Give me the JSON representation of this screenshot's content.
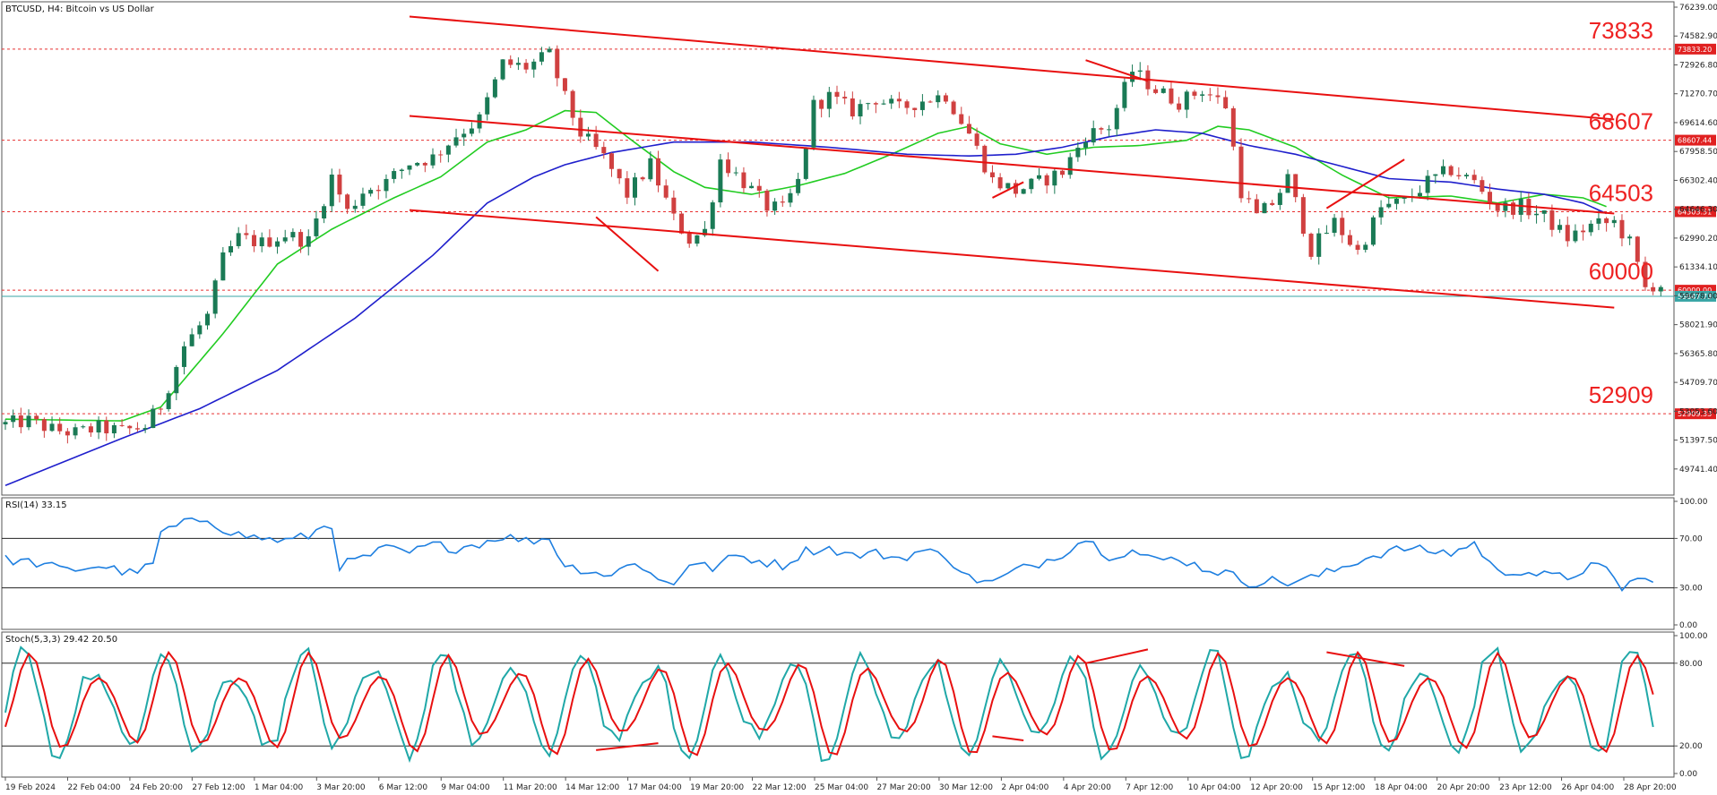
{
  "chart_data": {
    "type": "candlestick",
    "title": "BTCUSD, H4:  Bitcoin vs US Dollar",
    "price_axis": {
      "ticks": [
        "76239.00",
        "74582.90",
        "72926.80",
        "71270.70",
        "69614.60",
        "67958.50",
        "66302.40",
        "64646.30",
        "62990.20",
        "61334.10",
        "59678.00",
        "58021.90",
        "56365.80",
        "54709.70",
        "53053.60",
        "51397.50",
        "49741.40"
      ],
      "ylim": [
        48500,
        76239
      ]
    },
    "time_axis": {
      "ticks": [
        "19 Feb 2024",
        "22 Feb 04:00",
        "24 Feb 20:00",
        "27 Feb 12:00",
        "1 Mar 04:00",
        "3 Mar 20:00",
        "6 Mar 12:00",
        "9 Mar 04:00",
        "11 Mar 20:00",
        "14 Mar 12:00",
        "17 Mar 04:00",
        "19 Mar 20:00",
        "22 Mar 12:00",
        "25 Mar 04:00",
        "27 Mar 20:00",
        "30 Mar 12:00",
        "2 Apr 04:00",
        "4 Apr 20:00",
        "7 Apr 12:00",
        "10 Apr 04:00",
        "12 Apr 20:00",
        "15 Apr 12:00",
        "18 Apr 04:00",
        "20 Apr 20:00",
        "23 Apr 12:00",
        "26 Apr 04:00",
        "28 Apr 20:00"
      ]
    },
    "price_path": [
      [
        0,
        52300
      ],
      [
        3,
        52500
      ],
      [
        6,
        52000
      ],
      [
        9,
        51800
      ],
      [
        12,
        52100
      ],
      [
        15,
        51900
      ],
      [
        18,
        52200
      ],
      [
        20,
        53400
      ],
      [
        23,
        56800
      ],
      [
        26,
        58500
      ],
      [
        28,
        61800
      ],
      [
        30,
        63000
      ],
      [
        33,
        62700
      ],
      [
        36,
        63200
      ],
      [
        39,
        62800
      ],
      [
        42,
        66500
      ],
      [
        44,
        64500
      ],
      [
        46,
        65700
      ],
      [
        49,
        66200
      ],
      [
        52,
        67300
      ],
      [
        55,
        67600
      ],
      [
        58,
        68900
      ],
      [
        61,
        69800
      ],
      [
        64,
        73000
      ],
      [
        67,
        72800
      ],
      [
        70,
        73500
      ],
      [
        72,
        71000
      ],
      [
        74,
        69000
      ],
      [
        77,
        67600
      ],
      [
        80,
        65500
      ],
      [
        83,
        67200
      ],
      [
        86,
        64100
      ],
      [
        88,
        62900
      ],
      [
        90,
        63400
      ],
      [
        92,
        67500
      ],
      [
        95,
        66200
      ],
      [
        98,
        64800
      ],
      [
        100,
        64600
      ],
      [
        102,
        66200
      ],
      [
        104,
        70600
      ],
      [
        106,
        71100
      ],
      [
        109,
        70300
      ],
      [
        112,
        71000
      ],
      [
        115,
        70400
      ],
      [
        118,
        70900
      ],
      [
        121,
        71200
      ],
      [
        124,
        69000
      ],
      [
        127,
        66300
      ],
      [
        130,
        65700
      ],
      [
        133,
        66200
      ],
      [
        136,
        66800
      ],
      [
        139,
        68900
      ],
      [
        142,
        69400
      ],
      [
        145,
        72600
      ],
      [
        148,
        71500
      ],
      [
        151,
        70800
      ],
      [
        154,
        71500
      ],
      [
        157,
        70600
      ],
      [
        159,
        65700
      ],
      [
        161,
        64200
      ],
      [
        163,
        65000
      ],
      [
        165,
        66400
      ],
      [
        168,
        62300
      ],
      [
        171,
        63900
      ],
      [
        174,
        62200
      ],
      [
        177,
        64700
      ],
      [
        180,
        65100
      ],
      [
        183,
        66200
      ],
      [
        186,
        66900
      ],
      [
        189,
        66200
      ],
      [
        192,
        64700
      ],
      [
        195,
        64800
      ],
      [
        198,
        64200
      ],
      [
        201,
        63000
      ],
      [
        204,
        63700
      ],
      [
        207,
        63900
      ],
      [
        209,
        62700
      ],
      [
        211,
        60100
      ],
      [
        212,
        60300
      ]
    ],
    "moving_averages": [
      {
        "color": "#22cc22",
        "points": [
          [
            0,
            52600
          ],
          [
            15,
            52500
          ],
          [
            20,
            53300
          ],
          [
            28,
            57500
          ],
          [
            35,
            61500
          ],
          [
            42,
            63500
          ],
          [
            50,
            65300
          ],
          [
            56,
            66500
          ],
          [
            62,
            68500
          ],
          [
            67,
            69200
          ],
          [
            72,
            70300
          ],
          [
            76,
            70200
          ],
          [
            80,
            68800
          ],
          [
            86,
            66800
          ],
          [
            90,
            65900
          ],
          [
            96,
            65500
          ],
          [
            102,
            66000
          ],
          [
            108,
            66700
          ],
          [
            114,
            67800
          ],
          [
            120,
            69000
          ],
          [
            124,
            69400
          ],
          [
            128,
            68400
          ],
          [
            134,
            67800
          ],
          [
            140,
            68200
          ],
          [
            146,
            68300
          ],
          [
            152,
            68600
          ],
          [
            156,
            69400
          ],
          [
            160,
            69200
          ],
          [
            166,
            68200
          ],
          [
            172,
            66600
          ],
          [
            178,
            65300
          ],
          [
            186,
            65400
          ],
          [
            192,
            65000
          ],
          [
            198,
            65500
          ],
          [
            203,
            65300
          ],
          [
            206,
            64800
          ]
        ]
      },
      {
        "color": "#1f1fcc",
        "points": [
          [
            0,
            48800
          ],
          [
            15,
            51500
          ],
          [
            25,
            53200
          ],
          [
            35,
            55400
          ],
          [
            45,
            58400
          ],
          [
            55,
            62000
          ],
          [
            62,
            65000
          ],
          [
            68,
            66500
          ],
          [
            72,
            67200
          ],
          [
            78,
            67900
          ],
          [
            86,
            68500
          ],
          [
            96,
            68500
          ],
          [
            106,
            68200
          ],
          [
            116,
            67800
          ],
          [
            124,
            67700
          ],
          [
            130,
            67800
          ],
          [
            136,
            68200
          ],
          [
            142,
            68800
          ],
          [
            148,
            69200
          ],
          [
            154,
            69000
          ],
          [
            160,
            68300
          ],
          [
            166,
            67800
          ],
          [
            172,
            67100
          ],
          [
            178,
            66400
          ],
          [
            186,
            66200
          ],
          [
            192,
            65800
          ],
          [
            198,
            65500
          ],
          [
            203,
            65000
          ],
          [
            206,
            64400
          ]
        ]
      }
    ],
    "levels": [
      {
        "label": "73833",
        "value": 73833.2,
        "tag": "73833.20"
      },
      {
        "label": "68607",
        "value": 68607.44,
        "tag": "68607.44"
      },
      {
        "label": "64503",
        "value": 64503.51,
        "tag": "64503.51"
      },
      {
        "label": "60000",
        "value": 60000.0,
        "tag": "60000.00"
      },
      {
        "label": "52909",
        "value": 52909.33,
        "tag": "52909.33"
      }
    ],
    "current_price": {
      "value": 59647.73,
      "tag": "59647.73"
    },
    "channel_lines": [
      [
        [
          52,
          75700
        ],
        [
          207,
          69800
        ]
      ],
      [
        [
          52,
          70000
        ],
        [
          207,
          64400
        ]
      ],
      [
        [
          52,
          64600
        ],
        [
          207,
          59000
        ]
      ]
    ],
    "divergence_marks": [
      [
        [
          76,
          64200
        ],
        [
          84,
          61100
        ]
      ],
      [
        [
          127,
          65300
        ],
        [
          131,
          66200
        ]
      ],
      [
        [
          139,
          73200
        ],
        [
          147,
          72000
        ]
      ],
      [
        [
          170,
          64700
        ],
        [
          180,
          67500
        ]
      ]
    ],
    "rsi": {
      "label": "RSI(14) 33.15",
      "ticks": [
        "100.00",
        "70.00",
        "30.00",
        "0.00"
      ],
      "levels": [
        70,
        30
      ],
      "path": [
        [
          0,
          53
        ],
        [
          4,
          50
        ],
        [
          8,
          44
        ],
        [
          12,
          48
        ],
        [
          16,
          42
        ],
        [
          19,
          48
        ],
        [
          20,
          75
        ],
        [
          23,
          82
        ],
        [
          26,
          86
        ],
        [
          28,
          78
        ],
        [
          30,
          73
        ],
        [
          33,
          70
        ],
        [
          36,
          68
        ],
        [
          39,
          72
        ],
        [
          41,
          80
        ],
        [
          42,
          80
        ],
        [
          43,
          48
        ],
        [
          46,
          54
        ],
        [
          49,
          62
        ],
        [
          52,
          58
        ],
        [
          55,
          65
        ],
        [
          58,
          62
        ],
        [
          61,
          66
        ],
        [
          64,
          72
        ],
        [
          67,
          68
        ],
        [
          70,
          70
        ],
        [
          72,
          48
        ],
        [
          75,
          44
        ],
        [
          78,
          40
        ],
        [
          81,
          52
        ],
        [
          84,
          36
        ],
        [
          86,
          34
        ],
        [
          88,
          50
        ],
        [
          91,
          46
        ],
        [
          94,
          56
        ],
        [
          97,
          52
        ],
        [
          100,
          48
        ],
        [
          103,
          60
        ],
        [
          106,
          62
        ],
        [
          109,
          56
        ],
        [
          112,
          58
        ],
        [
          115,
          54
        ],
        [
          118,
          60
        ],
        [
          121,
          56
        ],
        [
          124,
          38
        ],
        [
          127,
          34
        ],
        [
          130,
          44
        ],
        [
          133,
          50
        ],
        [
          136,
          58
        ],
        [
          139,
          70
        ],
        [
          142,
          56
        ],
        [
          145,
          60
        ],
        [
          148,
          52
        ],
        [
          151,
          54
        ],
        [
          154,
          46
        ],
        [
          157,
          42
        ],
        [
          160,
          34
        ],
        [
          163,
          36
        ],
        [
          165,
          34
        ],
        [
          168,
          38
        ],
        [
          171,
          44
        ],
        [
          174,
          52
        ],
        [
          177,
          58
        ],
        [
          180,
          62
        ],
        [
          183,
          60
        ],
        [
          186,
          58
        ],
        [
          189,
          66
        ],
        [
          192,
          42
        ],
        [
          195,
          44
        ],
        [
          198,
          40
        ],
        [
          201,
          38
        ],
        [
          204,
          48
        ],
        [
          206,
          44
        ],
        [
          208,
          30
        ],
        [
          210,
          38
        ],
        [
          212,
          33
        ]
      ]
    },
    "stochastic": {
      "label": "Stoch(5,3,3) 29.42 20.50",
      "ticks": [
        "100.00",
        "80.00",
        "20.00",
        "0.00"
      ],
      "levels": [
        80,
        20
      ],
      "period": 9,
      "main_amplitude": 42,
      "signal_amplitude": 38,
      "current": [
        29.42,
        20.5
      ],
      "divergence_marks": [
        [
          [
            76,
            17
          ],
          [
            84,
            22
          ]
        ],
        [
          [
            127,
            27
          ],
          [
            131,
            24
          ]
        ],
        [
          [
            139,
            80
          ],
          [
            147,
            90
          ]
        ],
        [
          [
            170,
            88
          ],
          [
            180,
            78
          ]
        ]
      ]
    }
  }
}
